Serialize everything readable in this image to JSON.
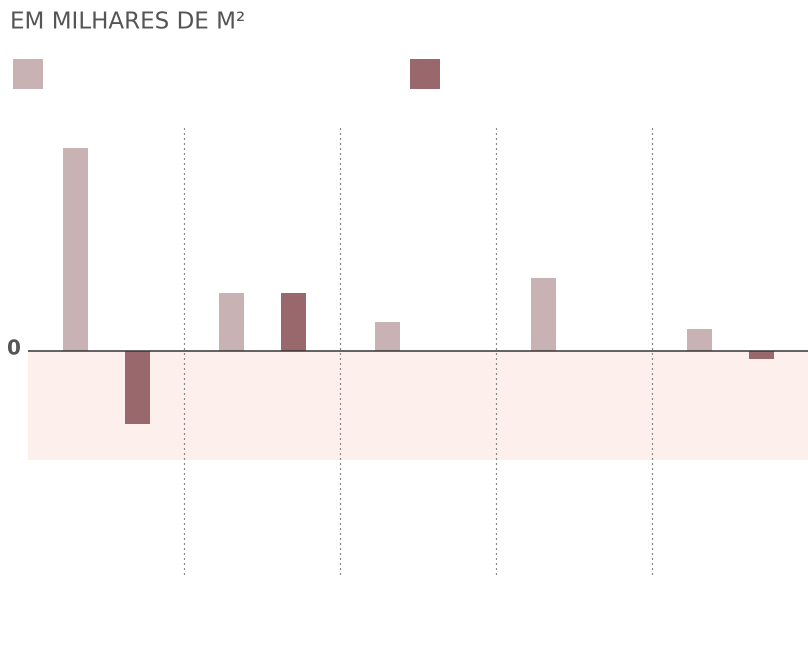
{
  "chart_data": {
    "type": "bar",
    "title": "EM MILHARES DE M²",
    "categories": [
      null,
      null,
      null,
      null,
      null
    ],
    "series": [
      {
        "color": "#c8b2b3",
        "values": [
          203,
          58,
          29,
          73,
          22
        ]
      },
      {
        "color": "#98686c",
        "values": [
          -73,
          58,
          null,
          null,
          -8
        ]
      }
    ],
    "ylim": [
      -224,
      223
    ],
    "yticks": [
      0
    ]
  }
}
